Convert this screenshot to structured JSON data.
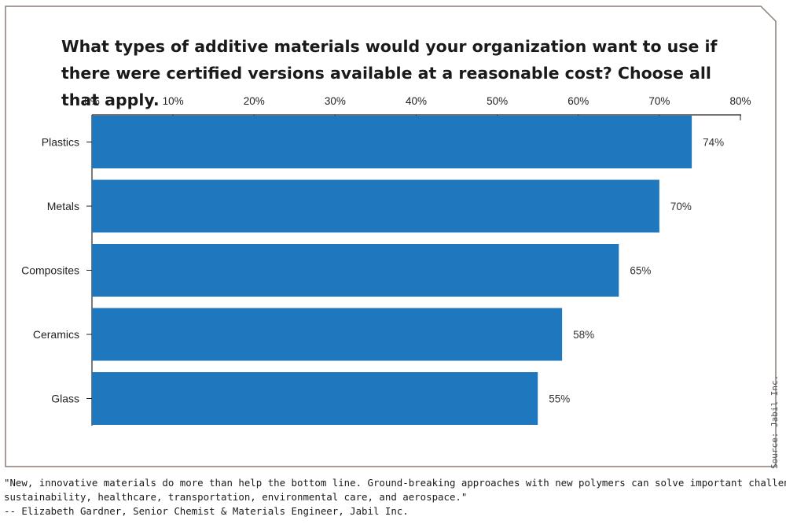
{
  "chart_data": {
    "type": "bar",
    "orientation": "horizontal",
    "title": "What types of additive materials would your organization want to use if there were certified versions available at a reasonable cost? Choose all that apply.",
    "categories": [
      "Plastics",
      "Metals",
      "Composites",
      "Ceramics",
      "Glass"
    ],
    "values": [
      74,
      70,
      65,
      58,
      55
    ],
    "value_labels": [
      "74%",
      "70%",
      "65%",
      "58%",
      "55%"
    ],
    "xlim": [
      0,
      80
    ],
    "x_ticks": [
      0,
      10,
      20,
      30,
      40,
      50,
      60,
      70,
      80
    ],
    "x_tick_labels": [
      "0%",
      "10%",
      "20%",
      "30%",
      "40%",
      "50%",
      "60%",
      "70%",
      "80%"
    ],
    "x_axis_position": "top",
    "bar_color": "#1f77bd",
    "grid": false,
    "legend": "none"
  },
  "source": "Source: Jabil Inc.",
  "quote": {
    "lines": [
      "\"New, innovative materials do more than help the bottom line. Ground-breaking approaches with new polymers can solve important challenges in",
      "sustainability, healthcare, transportation, environmental care, and aerospace.\"",
      "-- Elizabeth Gardner, Senior Chemist & Materials Engineer, Jabil Inc."
    ]
  }
}
